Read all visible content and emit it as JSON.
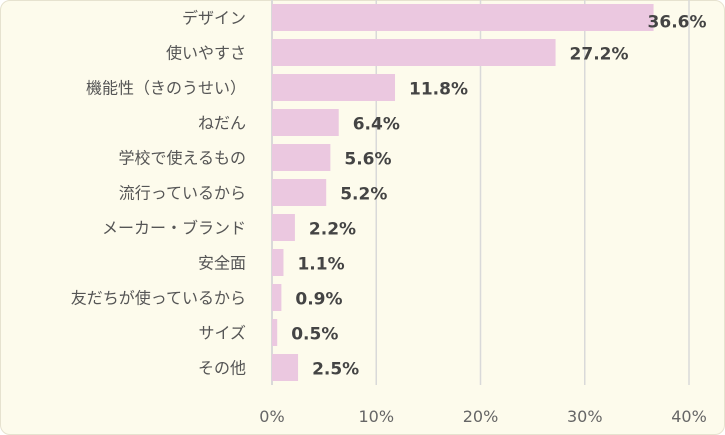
{
  "chart_data": {
    "type": "bar",
    "orientation": "horizontal",
    "categories": [
      "デザイン",
      "使いやすさ",
      "機能性（きのうせい）",
      "ねだん",
      "学校で使えるもの",
      "流行っているから",
      "メーカー・ブランド",
      "安全面",
      "友だちが使っているから",
      "サイズ",
      "その他"
    ],
    "values": [
      36.6,
      27.2,
      11.8,
      6.4,
      5.6,
      5.2,
      2.2,
      1.1,
      0.9,
      0.5,
      2.5
    ],
    "value_labels": [
      "36.6%",
      "27.2%",
      "11.8%",
      "6.4%",
      "5.6%",
      "5.2%",
      "2.2%",
      "1.1%",
      "0.9%",
      "0.5%",
      "2.5%"
    ],
    "xlim": [
      0,
      40
    ],
    "xticks": [
      0,
      10,
      20,
      30,
      40
    ],
    "xtick_labels": [
      "0%",
      "10%",
      "20%",
      "30%",
      "40%"
    ],
    "grid": "vertical",
    "bar_color": "#ebc8e0",
    "grid_color": "#d9d9d9",
    "background": "#fdfbec"
  }
}
